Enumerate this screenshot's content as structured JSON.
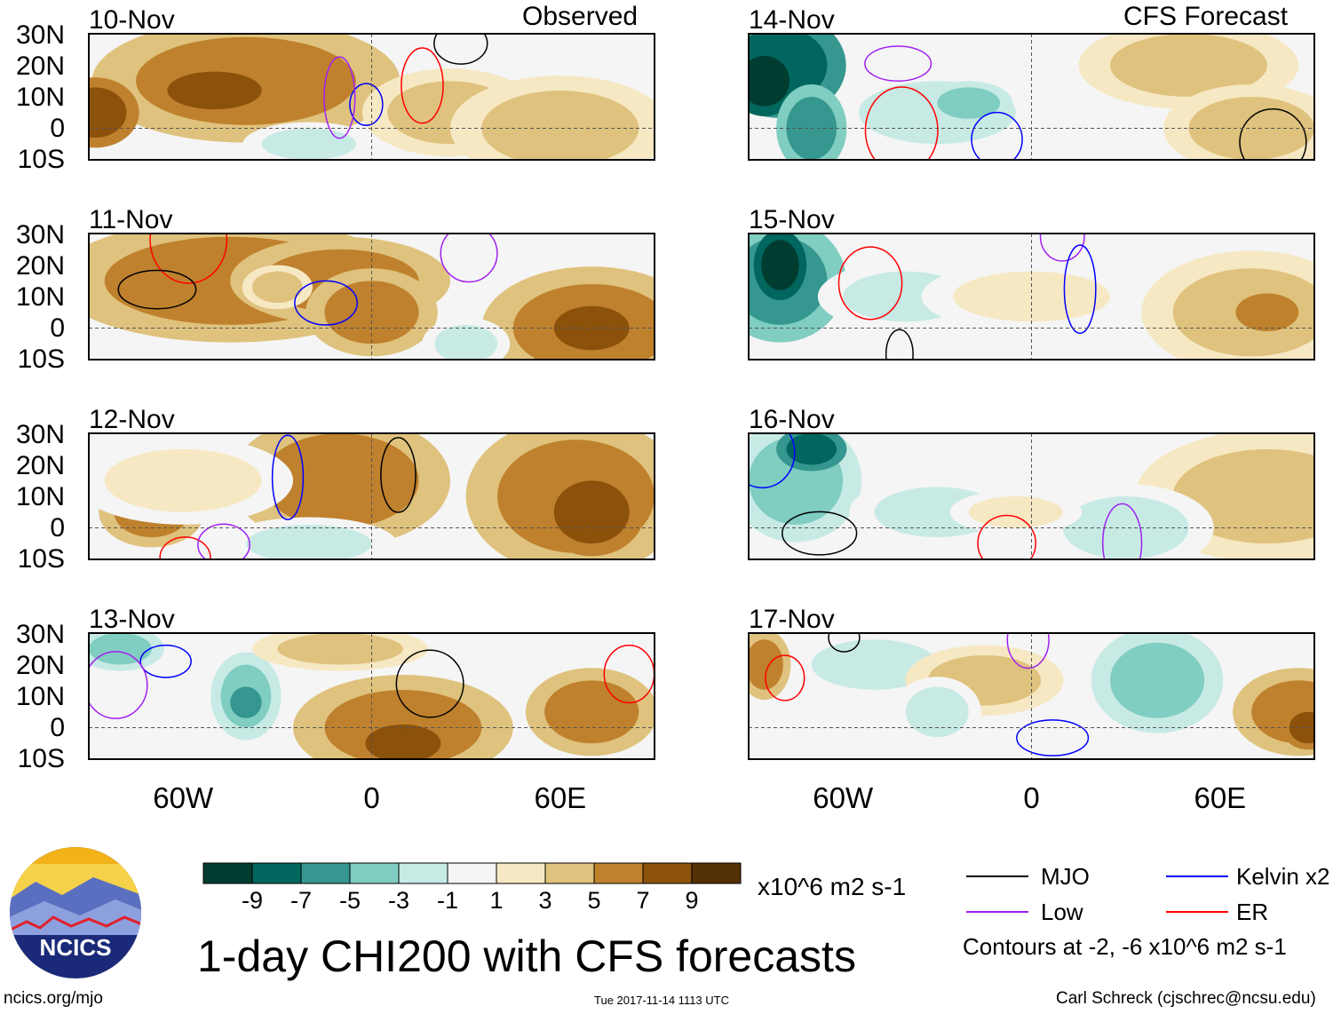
{
  "chart_data": {
    "type": "heatmap",
    "title": "1-day CHI200 with CFS forecasts",
    "units": "x10^6 m2 s-1",
    "lat_labels": [
      "30N",
      "20N",
      "10N",
      "0",
      "10S"
    ],
    "lon_labels": [
      "60W",
      "0",
      "60E"
    ],
    "lat_range": [
      -10,
      30
    ],
    "lon_range": [
      -90,
      90
    ],
    "panel_groups": [
      {
        "label": "Observed",
        "dates": [
          "10-Nov",
          "11-Nov",
          "12-Nov",
          "13-Nov"
        ]
      },
      {
        "label": "CFS Forecast",
        "dates": [
          "14-Nov",
          "15-Nov",
          "16-Nov",
          "17-Nov"
        ]
      }
    ],
    "colorbar": {
      "levels": [
        "-9",
        "-7",
        "-5",
        "-3",
        "-1",
        "1",
        "3",
        "5",
        "7",
        "9"
      ],
      "colors": [
        "#003c30",
        "#01665e",
        "#35978f",
        "#80cdc1",
        "#c7eae5",
        "#f5f5f5",
        "#f6e8c3",
        "#dfc27d",
        "#bf812d",
        "#8c510a",
        "#543005"
      ]
    },
    "legend": [
      {
        "label": "MJO",
        "color": "#000000"
      },
      {
        "label": "Kelvin x2",
        "color": "#0000ff"
      },
      {
        "label": "Low",
        "color": "#a020f0"
      },
      {
        "label": "ER",
        "color": "#ff0000"
      }
    ],
    "contour_note": "Contours at -2, -6 x10^6 m2 s-1"
  },
  "footer": {
    "logo_text": "NCICS",
    "site": "ncics.org/mjo",
    "timestamp": "Tue 2017-11-14 1113 UTC",
    "author": "Carl Schreck (cjschrec@ncsu.edu)"
  }
}
